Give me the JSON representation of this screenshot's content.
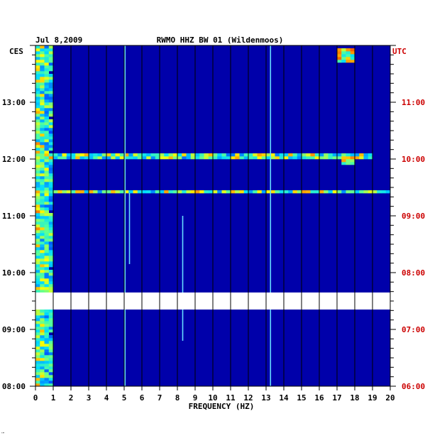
{
  "header": {
    "date": "Jul 8,2009",
    "station": "RWMO HHZ BW 01 (Wildenmoos)",
    "left_zone": "CES",
    "right_zone": "UTC"
  },
  "footer": {
    "mark": "′″"
  },
  "colors": {
    "background": "#0000aa",
    "gap": "#ffffff",
    "right_labels": "#cc0000",
    "left_labels": "#000000"
  },
  "chart_data": {
    "type": "heatmap",
    "title": "RWMO HHZ BW 01 (Wildenmoos)",
    "xlabel": "FREQUENCY (HZ)",
    "ylabel": "",
    "xlim": [
      0,
      20
    ],
    "x_ticks": [
      "0",
      "1",
      "2",
      "3",
      "4",
      "5",
      "6",
      "7",
      "8",
      "9",
      "10",
      "11",
      "12",
      "13",
      "14",
      "15",
      "16",
      "17",
      "18",
      "19",
      "20"
    ],
    "ylim_hours": [
      8.0,
      14.0
    ],
    "y_ticks_left": [
      {
        "hour": 13,
        "label": "13:00"
      },
      {
        "hour": 12,
        "label": "12:00"
      },
      {
        "hour": 11,
        "label": "11:00"
      },
      {
        "hour": 10,
        "label": "10:00"
      },
      {
        "hour": 9,
        "label": "09:00"
      },
      {
        "hour": 8,
        "label": "08:00"
      }
    ],
    "y_ticks_right": [
      {
        "hour": 13,
        "label": "11:00"
      },
      {
        "hour": 12,
        "label": "10:00"
      },
      {
        "hour": 11,
        "label": "09:00"
      },
      {
        "hour": 10,
        "label": "08:00"
      },
      {
        "hour": 9,
        "label": "07:00"
      },
      {
        "hour": 8,
        "label": "06:00"
      }
    ],
    "data_gap_hours": [
      9.35,
      9.65
    ],
    "features": [
      {
        "kind": "low_freq_band",
        "f_from": 0.0,
        "f_to": 1.1
      },
      {
        "kind": "line",
        "freq": 5.05,
        "t_from": 8.0,
        "t_to": 14.0
      },
      {
        "kind": "line",
        "freq": 5.3,
        "t_from": 10.15,
        "t_to": 11.4
      },
      {
        "kind": "line",
        "freq": 8.3,
        "t_from": 8.8,
        "t_to": 11.0
      },
      {
        "kind": "line",
        "freq": 13.25,
        "t_from": 8.0,
        "t_to": 14.0
      },
      {
        "kind": "burst",
        "hour": 12.05,
        "f_from": 0.0,
        "f_to": 19.0
      },
      {
        "kind": "burst",
        "hour": 11.42,
        "f_from": 0.0,
        "f_to": 20.0
      },
      {
        "kind": "hotspot",
        "f_from": 17.0,
        "f_to": 18.0,
        "t_from": 13.7,
        "t_to": 13.95
      },
      {
        "kind": "hotspot",
        "f_from": 17.2,
        "f_to": 18.0,
        "t_from": 11.9,
        "t_to": 12.05
      }
    ]
  }
}
